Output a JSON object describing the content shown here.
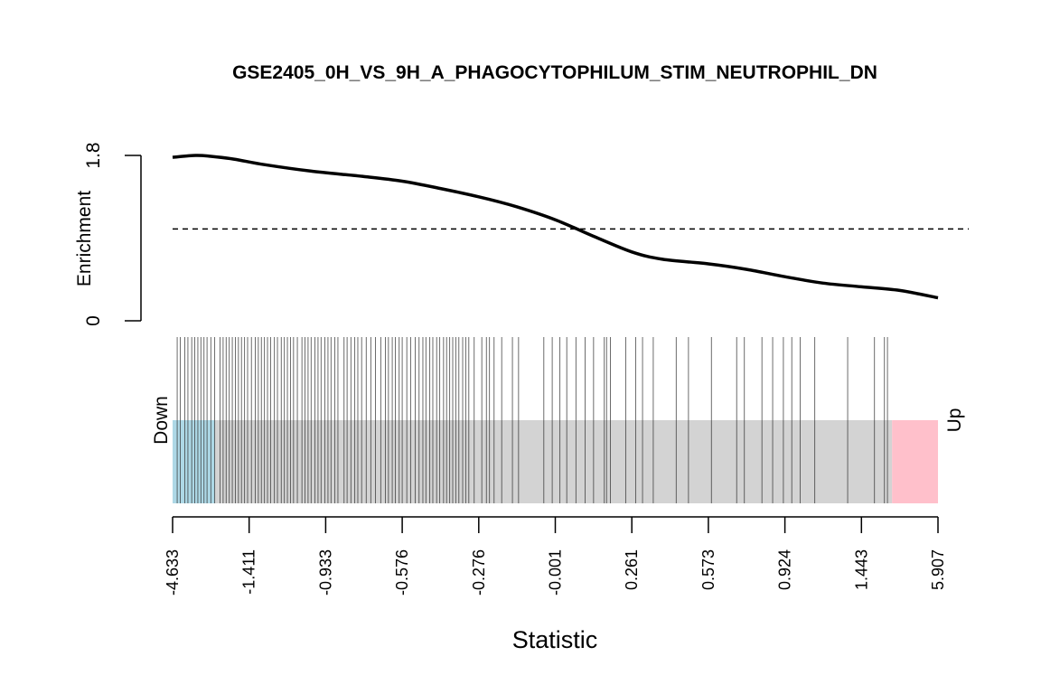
{
  "chart_data": {
    "type": "line",
    "title": "GSE2405_0H_VS_9H_A_PHAGOCYTOPHILUM_STIM_NEUTROPHIL_DN",
    "ylabel": "Enrichment",
    "xlabel": "Statistic",
    "ylim": [
      0,
      1.8
    ],
    "yticks": [
      "0",
      "1.8"
    ],
    "reference_line": 1,
    "reference_style": "dashed",
    "rank_range": [
      0,
      1
    ],
    "enrichment_curve": {
      "rank": [
        0,
        0.03,
        0.05,
        0.08,
        0.12,
        0.18,
        0.25,
        0.3,
        0.35,
        0.4,
        0.45,
        0.5,
        0.55,
        0.6,
        0.64,
        0.7,
        0.75,
        0.8,
        0.85,
        0.9,
        0.95,
        1.0
      ],
      "values": [
        1.78,
        1.8,
        1.79,
        1.76,
        1.7,
        1.63,
        1.57,
        1.52,
        1.44,
        1.35,
        1.24,
        1.1,
        0.92,
        0.75,
        0.67,
        0.62,
        0.56,
        0.48,
        0.41,
        0.37,
        0.33,
        0.25
      ]
    },
    "barcode_ranks": [
      0.006,
      0.01,
      0.016,
      0.02,
      0.025,
      0.029,
      0.033,
      0.037,
      0.041,
      0.045,
      0.05,
      0.055,
      0.062,
      0.066,
      0.07,
      0.074,
      0.078,
      0.082,
      0.086,
      0.09,
      0.094,
      0.098,
      0.103,
      0.108,
      0.112,
      0.116,
      0.12,
      0.124,
      0.128,
      0.133,
      0.137,
      0.142,
      0.146,
      0.15,
      0.154,
      0.158,
      0.163,
      0.169,
      0.173,
      0.177,
      0.181,
      0.186,
      0.19,
      0.194,
      0.199,
      0.203,
      0.207,
      0.212,
      0.216,
      0.224,
      0.228,
      0.233,
      0.238,
      0.242,
      0.247,
      0.253,
      0.259,
      0.265,
      0.272,
      0.278,
      0.282,
      0.287,
      0.291,
      0.296,
      0.3,
      0.306,
      0.311,
      0.317,
      0.322,
      0.327,
      0.331,
      0.336,
      0.34,
      0.345,
      0.349,
      0.354,
      0.358,
      0.362,
      0.366,
      0.37,
      0.374,
      0.379,
      0.383,
      0.387,
      0.394,
      0.404,
      0.41,
      0.414,
      0.42,
      0.43,
      0.444,
      0.452,
      0.485,
      0.496,
      0.506,
      0.515,
      0.527,
      0.539,
      0.55,
      0.564,
      0.567,
      0.572,
      0.592,
      0.605,
      0.614,
      0.628,
      0.658,
      0.674,
      0.704,
      0.737,
      0.747,
      0.77,
      0.784,
      0.798,
      0.809,
      0.82,
      0.839,
      0.882,
      0.917,
      0.93,
      0.934
    ],
    "bands": [
      {
        "label": "Down",
        "color": "#add8e6",
        "from": 0.0,
        "to": 0.055
      },
      {
        "label": "",
        "color": "#d3d3d3",
        "from": 0.055,
        "to": 0.94
      },
      {
        "label": "Up",
        "color": "#ffc0cb",
        "from": 0.94,
        "to": 1.0
      }
    ],
    "x_tick_labels": [
      "-4.633",
      "-1.411",
      "-0.933",
      "-0.576",
      "-0.276",
      "-0.001",
      "0.261",
      "0.573",
      "0.924",
      "1.443",
      "5.907"
    ],
    "grid": false,
    "legend": "none"
  }
}
